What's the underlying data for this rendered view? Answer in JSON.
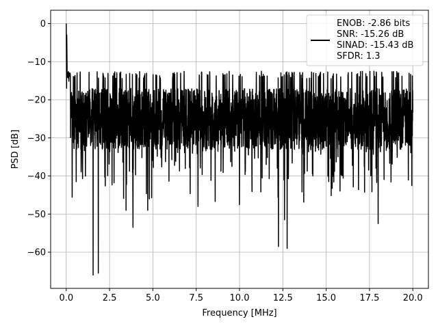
{
  "chart_data": {
    "type": "line",
    "title": "",
    "xlabel": "Frequency [MHz]",
    "ylabel": "PSD [dB]",
    "xlim": [
      -0.9,
      20.9
    ],
    "ylim": [
      -69.5,
      3.5
    ],
    "xticks": [
      0.0,
      2.5,
      5.0,
      7.5,
      10.0,
      12.5,
      15.0,
      17.5,
      20.0
    ],
    "xtick_labels": [
      "0.0",
      "2.5",
      "5.0",
      "7.5",
      "10.0",
      "12.5",
      "15.0",
      "17.5",
      "20.0"
    ],
    "yticks": [
      0,
      -10,
      -20,
      -30,
      -40,
      -50,
      -60
    ],
    "ytick_labels": [
      "0",
      "−10",
      "−20",
      "−30",
      "−40",
      "−50",
      "−60"
    ],
    "grid": true,
    "legend_position": "top-right",
    "series": [
      {
        "name": "ENOB: -2.86 bits\nSNR: -15.26 dB\nSINAD: -15.43 dB\nSFDR: 1.3",
        "legend_lines": [
          "ENOB: -2.86 bits",
          "SNR: -15.26 dB",
          "SINAD: -15.43 dB",
          "SFDR: 1.3"
        ],
        "color": "#000000",
        "x_start": 0.0,
        "x_end": 20.0,
        "baseline_db": -25,
        "spread_db": 8,
        "peak": {
          "x": 0.0,
          "y": 0.0
        },
        "notable_dips": [
          {
            "x": 1.55,
            "y": -66.0
          },
          {
            "x": 1.85,
            "y": -65.5
          },
          {
            "x": 12.25,
            "y": -58.5
          },
          {
            "x": 12.75,
            "y": -59.0
          },
          {
            "x": 3.85,
            "y": -53.5
          },
          {
            "x": 12.6,
            "y": -51.5
          },
          {
            "x": 18.0,
            "y": -52.5
          },
          {
            "x": 3.45,
            "y": -49.0
          },
          {
            "x": 4.7,
            "y": -49.0
          },
          {
            "x": 7.6,
            "y": -48.0
          },
          {
            "x": 10.0,
            "y": -47.5
          }
        ]
      }
    ]
  }
}
